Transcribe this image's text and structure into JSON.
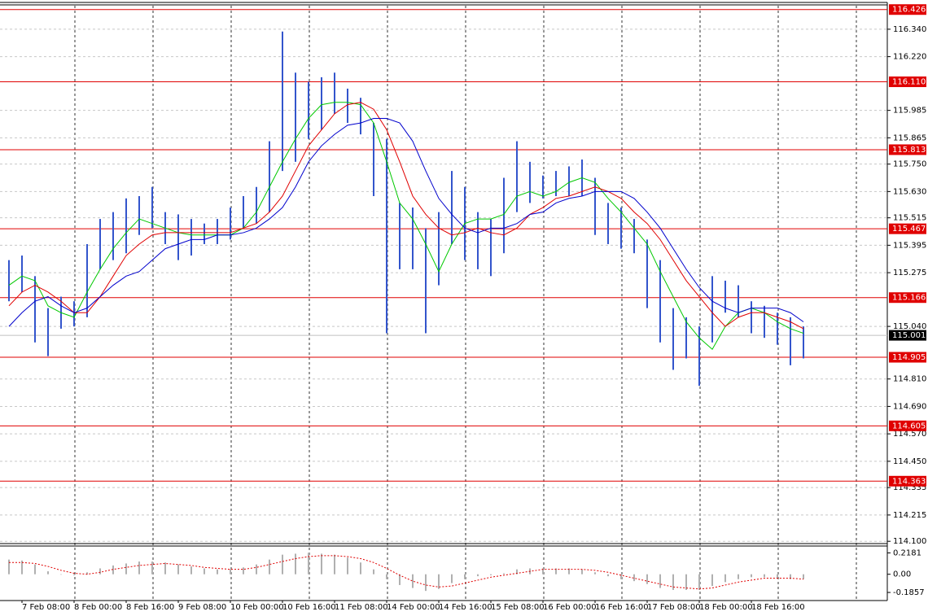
{
  "chart_data": [
    {
      "type": "ohlc",
      "color": "#3355cc",
      "categories": [
        null,
        "7 Feb 08:00",
        null,
        null,
        null,
        "8 Feb 00:00",
        null,
        null,
        null,
        "8 Feb 16:00",
        null,
        null,
        null,
        "9 Feb 08:00",
        null,
        null,
        null,
        "10 Feb 00:00",
        null,
        null,
        null,
        "10 Feb 16:00",
        null,
        null,
        null,
        "11 Feb 08:00",
        null,
        null,
        null,
        "14 Feb 00:00",
        null,
        null,
        null,
        "14 Feb 16:00",
        null,
        null,
        null,
        "15 Feb 08:00",
        null,
        null,
        null,
        "16 Feb 00:00",
        null,
        null,
        null,
        "16 Feb 16:00",
        null,
        null,
        null,
        "17 Feb 08:00",
        null,
        null,
        null,
        "18 Feb 00:00",
        null,
        null,
        null,
        "18 Feb 16:00",
        null,
        null,
        null,
        null
      ],
      "high": [
        115.33,
        115.35,
        115.26,
        115.12,
        115.17,
        115.15,
        115.4,
        115.51,
        115.54,
        115.6,
        115.61,
        115.65,
        115.54,
        115.53,
        115.51,
        115.49,
        115.51,
        115.56,
        115.61,
        115.65,
        115.85,
        116.33,
        116.15,
        116.11,
        116.13,
        116.15,
        116.08,
        116.04,
        115.93,
        115.86,
        115.58,
        115.56,
        115.47,
        115.54,
        115.72,
        115.65,
        115.54,
        115.51,
        115.69,
        115.85,
        115.76,
        115.7,
        115.72,
        115.74,
        115.77,
        115.69,
        115.58,
        115.56,
        115.51,
        115.42,
        115.33,
        115.12,
        115.08,
        115.04,
        115.26,
        115.24,
        115.22,
        115.15,
        115.13,
        115.1,
        115.08,
        115.04
      ],
      "low": [
        115.15,
        115.19,
        114.97,
        114.91,
        115.03,
        115.04,
        115.08,
        115.29,
        115.33,
        115.36,
        115.44,
        115.47,
        115.4,
        115.33,
        115.35,
        115.4,
        115.4,
        115.42,
        115.47,
        115.49,
        115.54,
        115.72,
        115.76,
        115.86,
        115.9,
        115.97,
        115.93,
        115.88,
        115.61,
        115.01,
        115.29,
        115.29,
        115.01,
        115.22,
        115.4,
        115.33,
        115.29,
        115.26,
        115.36,
        115.54,
        115.58,
        115.6,
        115.61,
        115.61,
        115.61,
        115.44,
        115.4,
        115.38,
        115.36,
        115.12,
        114.97,
        114.85,
        114.9,
        114.78,
        114.97,
        115.1,
        115.08,
        115.01,
        114.99,
        114.96,
        114.87,
        114.9
      ],
      "series": [
        {
          "color": "#00c800",
          "values": [
            115.22,
            115.26,
            115.24,
            115.13,
            115.1,
            115.08,
            115.19,
            115.29,
            115.38,
            115.45,
            115.51,
            115.49,
            115.47,
            115.45,
            115.44,
            115.44,
            115.44,
            115.44,
            115.47,
            115.54,
            115.65,
            115.76,
            115.86,
            115.95,
            116.01,
            116.02,
            116.02,
            116.01,
            115.93,
            115.76,
            115.58,
            115.51,
            115.4,
            115.28,
            115.4,
            115.49,
            115.51,
            115.51,
            115.53,
            115.61,
            115.63,
            115.61,
            115.63,
            115.67,
            115.69,
            115.67,
            115.6,
            115.54,
            115.47,
            115.4,
            115.28,
            115.17,
            115.06,
            114.99,
            114.94,
            115.04,
            115.1,
            115.12,
            115.1,
            115.06,
            115.03,
            115.01
          ]
        },
        {
          "color": "#e00000",
          "values": [
            115.13,
            115.19,
            115.22,
            115.19,
            115.15,
            115.1,
            115.1,
            115.17,
            115.26,
            115.35,
            115.4,
            115.44,
            115.45,
            115.45,
            115.45,
            115.45,
            115.45,
            115.45,
            115.47,
            115.49,
            115.54,
            115.61,
            115.72,
            115.83,
            115.9,
            115.97,
            116.01,
            116.02,
            115.99,
            115.9,
            115.76,
            115.61,
            115.53,
            115.47,
            115.44,
            115.45,
            115.47,
            115.45,
            115.44,
            115.47,
            115.53,
            115.56,
            115.6,
            115.61,
            115.63,
            115.65,
            115.63,
            115.6,
            115.54,
            115.49,
            115.42,
            115.33,
            115.24,
            115.17,
            115.1,
            115.04,
            115.08,
            115.1,
            115.1,
            115.08,
            115.06,
            115.03
          ]
        },
        {
          "color": "#0000cc",
          "values": [
            115.04,
            115.1,
            115.15,
            115.17,
            115.13,
            115.1,
            115.12,
            115.17,
            115.22,
            115.26,
            115.28,
            115.33,
            115.38,
            115.4,
            115.42,
            115.42,
            115.44,
            115.44,
            115.45,
            115.47,
            115.51,
            115.56,
            115.65,
            115.76,
            115.83,
            115.88,
            115.92,
            115.93,
            115.95,
            115.95,
            115.93,
            115.85,
            115.72,
            115.6,
            115.53,
            115.47,
            115.45,
            115.47,
            115.47,
            115.49,
            115.53,
            115.54,
            115.58,
            115.6,
            115.61,
            115.63,
            115.63,
            115.63,
            115.6,
            115.54,
            115.47,
            115.38,
            115.29,
            115.21,
            115.15,
            115.12,
            115.1,
            115.12,
            115.12,
            115.12,
            115.1,
            115.06
          ]
        }
      ],
      "ylim": [
        114.09,
        116.45
      ],
      "yticks": [
        {
          "value": 116.34,
          "label": "116.340"
        },
        {
          "value": 116.22,
          "label": "116.220"
        },
        115.985,
        115.865,
        {
          "value": 115.75,
          "label": "115.750"
        },
        {
          "value": 115.63,
          "label": "115.630"
        },
        115.515,
        115.395,
        115.275,
        {
          "value": 115.04,
          "label": "115.040"
        },
        {
          "value": 114.81,
          "label": "114.810"
        },
        {
          "value": 114.69,
          "label": "114.690"
        },
        {
          "value": 114.57,
          "label": "114.570"
        },
        {
          "value": 114.45,
          "label": "114.450"
        },
        114.335,
        114.215,
        {
          "value": 114.1,
          "label": "114.100"
        }
      ],
      "grid": true,
      "levels": [
        116.426,
        {
          "value": 116.11,
          "label": "116.110"
        },
        115.813,
        115.467,
        115.166,
        114.905,
        114.605,
        114.363
      ],
      "level_color": "#e00000",
      "current_price": 115.001
    },
    {
      "type": "bar",
      "color": "#b0b0b0",
      "values": [
        0.15,
        0.14,
        0.1,
        0.03,
        0.0,
        -0.01,
        0.02,
        0.06,
        0.09,
        0.11,
        0.13,
        0.13,
        0.12,
        0.1,
        0.08,
        0.06,
        0.05,
        0.05,
        0.07,
        0.1,
        0.15,
        0.2,
        0.21,
        0.22,
        0.21,
        0.2,
        0.17,
        0.12,
        0.05,
        -0.05,
        -0.11,
        -0.14,
        -0.17,
        -0.15,
        -0.09,
        -0.05,
        -0.02,
        -0.01,
        0.01,
        0.05,
        0.06,
        0.06,
        0.06,
        0.06,
        0.05,
        0.02,
        -0.02,
        -0.05,
        -0.07,
        -0.1,
        -0.14,
        -0.16,
        -0.16,
        -0.16,
        -0.12,
        -0.08,
        -0.05,
        -0.03,
        -0.03,
        -0.04,
        -0.05,
        -0.05
      ],
      "series": [
        {
          "color": "#e00000",
          "values": [
            0.12,
            0.12,
            0.11,
            0.08,
            0.04,
            0.01,
            0.0,
            0.02,
            0.05,
            0.07,
            0.09,
            0.1,
            0.11,
            0.1,
            0.09,
            0.07,
            0.06,
            0.05,
            0.05,
            0.07,
            0.1,
            0.13,
            0.16,
            0.18,
            0.19,
            0.19,
            0.18,
            0.16,
            0.12,
            0.06,
            -0.01,
            -0.07,
            -0.11,
            -0.13,
            -0.12,
            -0.09,
            -0.06,
            -0.03,
            -0.01,
            0.01,
            0.03,
            0.05,
            0.05,
            0.05,
            0.05,
            0.04,
            0.02,
            -0.01,
            -0.04,
            -0.07,
            -0.1,
            -0.13,
            -0.14,
            -0.15,
            -0.14,
            -0.11,
            -0.08,
            -0.06,
            -0.04,
            -0.04,
            -0.04,
            -0.05
          ]
        }
      ],
      "ylim": [
        -0.26,
        0.28
      ],
      "yticks": [
        0.2181,
        {
          "value": 0,
          "label": "0.00"
        },
        -0.1857
      ]
    }
  ]
}
